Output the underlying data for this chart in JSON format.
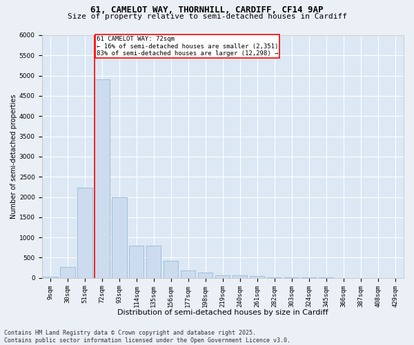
{
  "title1": "61, CAMELOT WAY, THORNHILL, CARDIFF, CF14 9AP",
  "title2": "Size of property relative to semi-detached houses in Cardiff",
  "xlabel": "Distribution of semi-detached houses by size in Cardiff",
  "ylabel": "Number of semi-detached properties",
  "categories": [
    "9sqm",
    "30sqm",
    "51sqm",
    "72sqm",
    "93sqm",
    "114sqm",
    "135sqm",
    "156sqm",
    "177sqm",
    "198sqm",
    "219sqm",
    "240sqm",
    "261sqm",
    "282sqm",
    "303sqm",
    "324sqm",
    "345sqm",
    "366sqm",
    "387sqm",
    "408sqm",
    "429sqm"
  ],
  "values": [
    30,
    270,
    2230,
    4900,
    2000,
    800,
    800,
    420,
    190,
    130,
    70,
    60,
    40,
    20,
    10,
    5,
    5,
    3,
    2,
    1,
    0
  ],
  "bar_color": "#ccdcee",
  "bar_edge_color": "#9ab8d4",
  "vline_color": "red",
  "vline_index": 3,
  "annotation_title": "61 CAMELOT WAY: 72sqm",
  "annotation_line1": "← 16% of semi-detached houses are smaller (2,351)",
  "annotation_line2": "83% of semi-detached houses are larger (12,298) →",
  "annotation_box_color": "red",
  "ylim": [
    0,
    6000
  ],
  "yticks": [
    0,
    500,
    1000,
    1500,
    2000,
    2500,
    3000,
    3500,
    4000,
    4500,
    5000,
    5500,
    6000
  ],
  "footer1": "Contains HM Land Registry data © Crown copyright and database right 2025.",
  "footer2": "Contains public sector information licensed under the Open Government Licence v3.0.",
  "bg_color": "#eaf0f6",
  "plot_bg_color": "#dce8f4",
  "grid_color": "#ffffff",
  "title1_fontsize": 9,
  "title2_fontsize": 8,
  "xlabel_fontsize": 8,
  "ylabel_fontsize": 7,
  "tick_fontsize": 6.5,
  "footer_fontsize": 6,
  "annot_fontsize": 6.5
}
